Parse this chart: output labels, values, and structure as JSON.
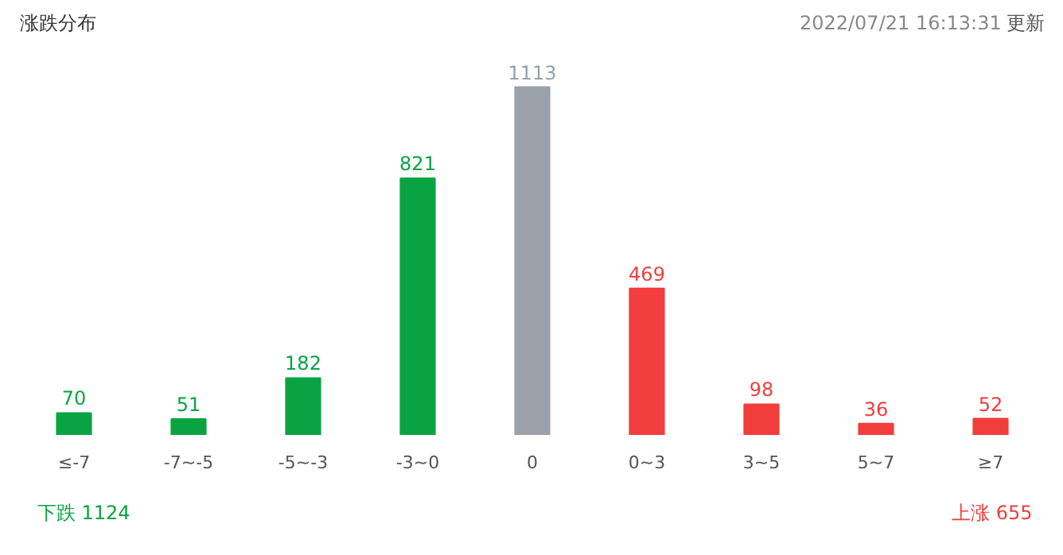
{
  "chart_data": {
    "type": "bar",
    "title": "涨跌分布",
    "subtitle": "2022/07/21 16:13:31",
    "categories": [
      "≤-7",
      "-7~-5",
      "-5~-3",
      "-3~0",
      "0",
      "0~3",
      "3~5",
      "5~7",
      "≥7"
    ],
    "values": [
      70,
      51,
      182,
      821,
      1113,
      469,
      98,
      36,
      52
    ],
    "colors": [
      "#0aa344",
      "#0aa344",
      "#0aa344",
      "#0aa344",
      "#9ba1a9",
      "#f23d3d",
      "#f23d3d",
      "#f23d3d",
      "#f23d3d"
    ],
    "data_labels": true,
    "annotations": [
      "更新",
      "下跌 1124",
      "上涨 655"
    ]
  }
}
